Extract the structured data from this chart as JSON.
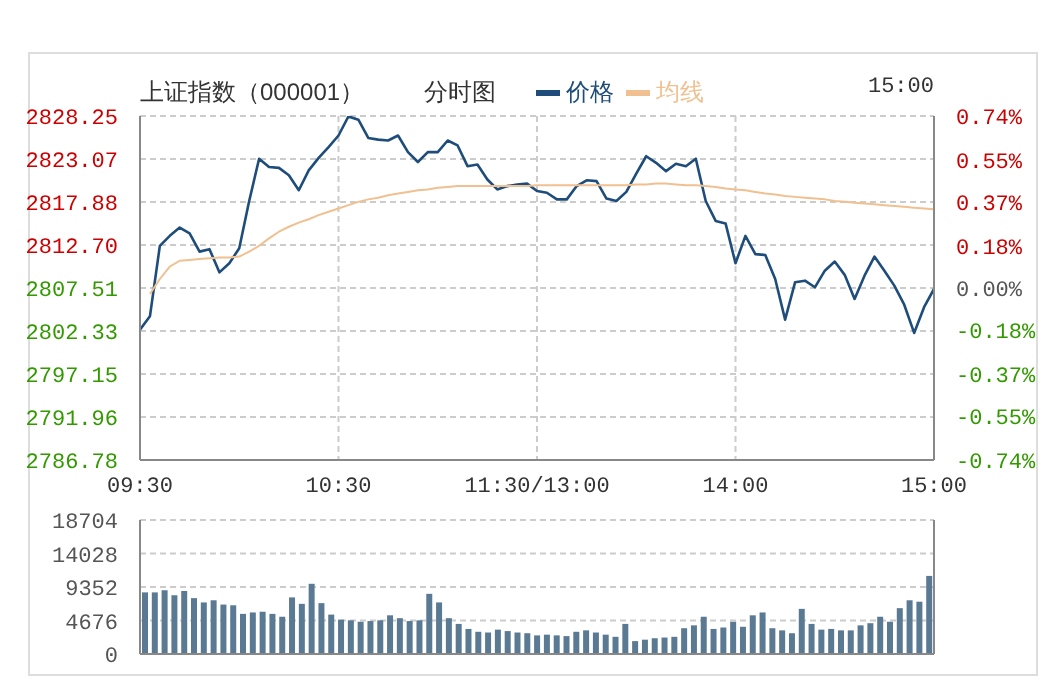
{
  "chart_data": [
    {
      "type": "line",
      "title": "上证指数（000001）",
      "subtitle": "分时图",
      "annotations": [
        "15:00"
      ],
      "legend": "top",
      "grid": true,
      "categories": [
        "09:30",
        null,
        null,
        null,
        null,
        null,
        null,
        null,
        null,
        null,
        null,
        null,
        null,
        null,
        null,
        null,
        null,
        null,
        null,
        null,
        "10:30",
        null,
        null,
        null,
        null,
        null,
        null,
        null,
        null,
        null,
        null,
        null,
        null,
        null,
        null,
        null,
        null,
        null,
        null,
        null,
        "11:30/13:00",
        null,
        null,
        null,
        null,
        null,
        null,
        null,
        null,
        null,
        null,
        null,
        null,
        null,
        null,
        null,
        null,
        null,
        null,
        null,
        "14:00",
        null,
        null,
        null,
        null,
        null,
        null,
        null,
        null,
        null,
        null,
        null,
        null,
        null,
        null,
        null,
        null,
        null,
        null,
        null,
        "15:00"
      ],
      "ylim": [
        2786.78,
        2828.25
      ],
      "yticks": [
        2786.78,
        2791.96,
        2797.15,
        2802.33,
        2807.51,
        {
          "value": 2812.7,
          "label": "2812.70"
        },
        2817.88,
        2823.07,
        2828.25
      ],
      "y2lim": [
        -0.74,
        0.74
      ],
      "y2ticks": [
        {
          "value": -0.74,
          "label": "-0.74%"
        },
        {
          "value": -0.55,
          "label": "-0.55%"
        },
        {
          "value": -0.37,
          "label": "-0.37%"
        },
        {
          "value": -0.18,
          "label": "-0.18%"
        },
        {
          "value": 0,
          "label": "0.00%"
        },
        {
          "value": 0.18,
          "label": "0.18%"
        },
        {
          "value": 0.37,
          "label": "0.37%"
        },
        {
          "value": 0.55,
          "label": "0.55%"
        },
        {
          "value": 0.74,
          "label": "0.74%"
        }
      ],
      "series": [
        {
          "name": "价格",
          "color": "#1e4d7b",
          "values": [
            2802.5,
            2804.1,
            2812.6,
            2813.8,
            2814.8,
            2814.1,
            2811.9,
            2812.2,
            2809.4,
            2810.5,
            2812.3,
            2818.0,
            2823.1,
            2822.1,
            2822.0,
            2821.1,
            2819.3,
            2821.7,
            2823.2,
            2824.5,
            2825.9,
            2828.2,
            2827.8,
            2825.6,
            2825.4,
            2825.3,
            2825.9,
            2823.9,
            2822.7,
            2823.9,
            2823.9,
            2825.3,
            2824.7,
            2822.2,
            2822.4,
            2820.6,
            2819.4,
            2819.8,
            2820.0,
            2820.1,
            2819.2,
            2819.0,
            2818.2,
            2818.2,
            2819.8,
            2820.5,
            2820.4,
            2818.3,
            2818.0,
            2819.1,
            2821.3,
            2823.4,
            2822.6,
            2821.6,
            2822.5,
            2822.2,
            2823.1,
            2818.0,
            2815.6,
            2815.3,
            2810.5,
            2813.8,
            2811.6,
            2811.5,
            2808.6,
            2803.7,
            2808.2,
            2808.4,
            2807.6,
            2809.6,
            2810.7,
            2809.1,
            2806.2,
            2809.0,
            2811.3,
            2809.6,
            2807.8,
            2805.5,
            2802.1,
            2805.2,
            2807.4
          ]
        },
        {
          "name": "均线",
          "color": "#f0c090",
          "values": [
            null,
            2806.8,
            2808.6,
            2810.1,
            2810.8,
            2810.9,
            2811.0,
            2811.1,
            2811.2,
            2811.2,
            2811.3,
            2811.9,
            2812.6,
            2813.5,
            2814.3,
            2814.9,
            2815.4,
            2815.8,
            2816.3,
            2816.7,
            2817.1,
            2817.5,
            2817.9,
            2818.2,
            2818.4,
            2818.7,
            2818.9,
            2819.1,
            2819.3,
            2819.4,
            2819.6,
            2819.7,
            2819.8,
            2819.8,
            2819.8,
            2819.8,
            2819.8,
            2819.8,
            2819.8,
            2819.8,
            2819.9,
            2819.9,
            2819.9,
            2819.9,
            2819.9,
            2819.9,
            2819.9,
            2819.9,
            2819.9,
            2819.9,
            2820.0,
            2820.0,
            2820.1,
            2820.1,
            2820.0,
            2819.9,
            2819.9,
            2819.8,
            2819.7,
            2819.5,
            2819.4,
            2819.3,
            2819.1,
            2818.9,
            2818.8,
            2818.6,
            2818.5,
            2818.4,
            2818.3,
            2818.2,
            2818.0,
            2817.9,
            2817.8,
            2817.7,
            2817.6,
            2817.5,
            2817.4,
            2817.3,
            2817.2,
            2817.1,
            2817.0
          ]
        }
      ]
    },
    {
      "type": "bar",
      "grid": "y",
      "tick_labels": "y",
      "categories": [
        null,
        null,
        null,
        null,
        null,
        null,
        null,
        null,
        null,
        null,
        null,
        null,
        null,
        null,
        null,
        null,
        null,
        null,
        null,
        null,
        null,
        null,
        null,
        null,
        null,
        null,
        null,
        null,
        null,
        null,
        null,
        null,
        null,
        null,
        null,
        null,
        null,
        null,
        null,
        null,
        null,
        null,
        null,
        null,
        null,
        null,
        null,
        null,
        null,
        null,
        null,
        null,
        null,
        null,
        null,
        null,
        null,
        null,
        null,
        null,
        null,
        null,
        null,
        null,
        null,
        null,
        null,
        null,
        null,
        null,
        null,
        null,
        null,
        null,
        null,
        null,
        null,
        null,
        null,
        null,
        null
      ],
      "ylim": [
        0,
        18704
      ],
      "yticks": [
        0,
        4676,
        9352,
        14028,
        18704
      ],
      "series": [
        {
          "color": "#5a7a94",
          "values": [
            8600,
            8600,
            8900,
            8200,
            8800,
            7800,
            7200,
            7500,
            6900,
            6800,
            5600,
            5800,
            5900,
            5600,
            5200,
            7900,
            7000,
            9800,
            7100,
            5500,
            4800,
            4700,
            4500,
            4600,
            4700,
            5400,
            5000,
            4600,
            4700,
            8400,
            7200,
            5000,
            4200,
            3500,
            3100,
            3000,
            3400,
            3200,
            3000,
            2900,
            2600,
            2700,
            2600,
            2500,
            3100,
            3300,
            3000,
            2700,
            2400,
            4200,
            1800,
            2000,
            2200,
            2300,
            2400,
            3600,
            4000,
            5200,
            3500,
            3700,
            4500,
            3800,
            5400,
            5800,
            3600,
            3300,
            2900,
            6300,
            4200,
            3400,
            3500,
            3300,
            3300,
            4000,
            4300,
            5200,
            4500,
            6400,
            7500,
            7300,
            10900
          ]
        }
      ]
    }
  ]
}
